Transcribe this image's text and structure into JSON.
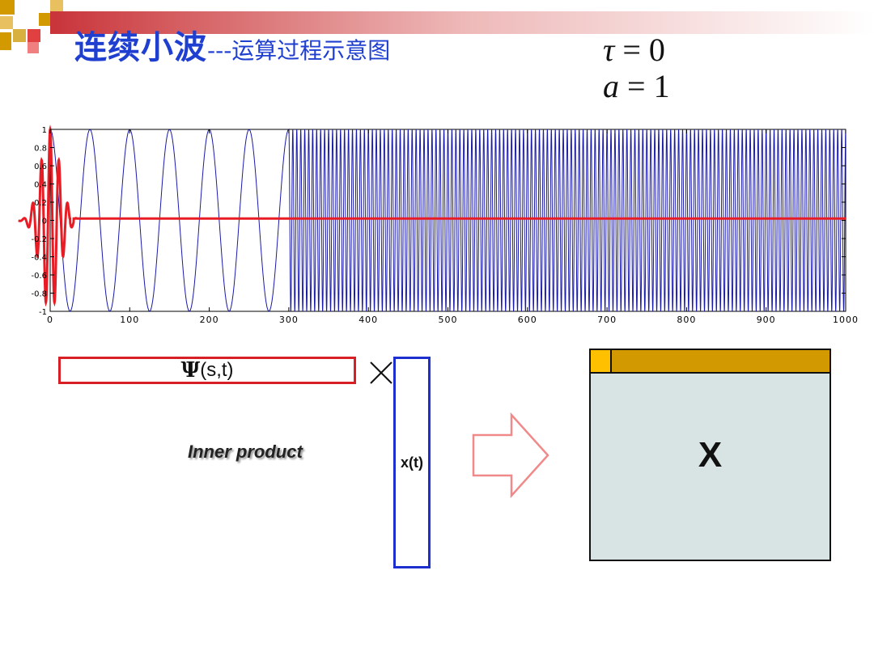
{
  "slide": {
    "title_main": "连续小波",
    "title_sub": "---运算过程示意图",
    "eq_tau": {
      "symbol": "τ",
      "rel": " = ",
      "value": "0"
    },
    "eq_a": {
      "symbol": "a",
      "rel": " = ",
      "value": "1"
    },
    "colors": {
      "title": "#1f3fd0",
      "signal": "#1a1aa8",
      "wavelet": "#e81c24",
      "result_fill": "#d8e4e4",
      "result_bar": "#d29a00",
      "result_cell": "#ffc000"
    }
  },
  "diagram": {
    "psi_symbol": "Ψ",
    "psi_args": "(s,t)",
    "xt_label": "x(t)",
    "inner_product": "Inner product",
    "result_label": "X",
    "operator_icon": "times-icon",
    "arrow_icon": "right-arrow-icon"
  },
  "chart_data": {
    "type": "line",
    "title": "",
    "xlabel": "",
    "ylabel": "",
    "xlim": [
      0,
      1000
    ],
    "ylim": [
      -1,
      1
    ],
    "x_ticks": [
      "0",
      "100",
      "200",
      "300",
      "400",
      "500",
      "600",
      "700",
      "800",
      "900",
      "1000"
    ],
    "y_ticks": [
      "1",
      "0.8",
      "0.6",
      "0.4",
      "0.2",
      "0",
      "-0.2",
      "-0.4",
      "-0.6",
      "-0.8",
      "-1"
    ],
    "series": [
      {
        "description": "signal",
        "color": "#1a1aa8",
        "segments": [
          {
            "x_start": 0,
            "x_end": 300,
            "period": 50
          },
          {
            "x_start": 300,
            "x_end": 1000,
            "period": 5
          }
        ]
      },
      {
        "description": "wavelet",
        "color": "#e81c24",
        "center": 0,
        "baseline_after": 0.02
      }
    ]
  }
}
